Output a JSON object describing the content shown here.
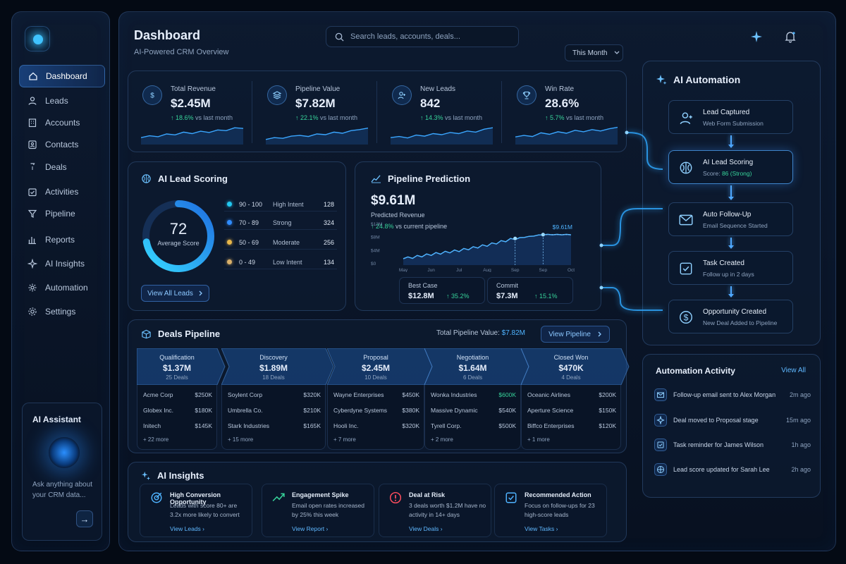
{
  "header": {
    "title": "Dashboard",
    "subtitle": "AI-Powered CRM Overview",
    "search_placeholder": "Search leads, accounts, deals...",
    "period": "This Month"
  },
  "sidebar": {
    "items": [
      {
        "label": "Dashboard",
        "icon": "home-icon",
        "active": true
      },
      {
        "label": "Leads",
        "icon": "user-icon"
      },
      {
        "label": "Accounts",
        "icon": "building-icon"
      },
      {
        "label": "Contacts",
        "icon": "contact-card-icon"
      },
      {
        "label": "Deals",
        "icon": "dollar-bag-icon"
      },
      {
        "label": "Activities",
        "icon": "calendar-check-icon"
      },
      {
        "label": "Pipeline",
        "icon": "funnel-icon"
      },
      {
        "label": "Reports",
        "icon": "bar-chart-icon"
      },
      {
        "label": "AI Insights",
        "icon": "sparkle-icon"
      },
      {
        "label": "Automation",
        "icon": "gear-flow-icon"
      },
      {
        "label": "Settings",
        "icon": "gear-icon"
      }
    ],
    "assistant": {
      "title": "AI Assistant",
      "desc": "Ask anything about your CRM data...",
      "action": "→"
    }
  },
  "kpis": [
    {
      "label": "Total Revenue",
      "value": "$2.45M",
      "change": "↑ 18.6%",
      "suffix": "vs last month",
      "icon": "dollar-icon"
    },
    {
      "label": "Pipeline Value",
      "value": "$7.82M",
      "change": "↑ 22.1%",
      "suffix": "vs last month",
      "icon": "layers-icon"
    },
    {
      "label": "New Leads",
      "value": "842",
      "change": "↑ 14.3%",
      "suffix": "vs last month",
      "icon": "add-user-icon"
    },
    {
      "label": "Win Rate",
      "value": "28.6%",
      "change": "↑ 5.7%",
      "suffix": "vs last month",
      "icon": "trophy-icon"
    }
  ],
  "lead_scoring": {
    "title": "AI Lead Scoring",
    "score": "72",
    "score_label": "Average Score",
    "score_value": 72,
    "button": "View All Leads",
    "rows": [
      {
        "range": "90 - 100",
        "name": "High Intent",
        "count": "128",
        "color": "#22c8f0"
      },
      {
        "range": "70 - 89",
        "name": "Strong",
        "count": "324",
        "color": "#2f8cff"
      },
      {
        "range": "50 - 69",
        "name": "Moderate",
        "count": "256",
        "color": "#e7b64a"
      },
      {
        "range": "0 - 49",
        "name": "Low Intent",
        "count": "134",
        "color": "#d9b06a"
      }
    ]
  },
  "prediction": {
    "title": "Pipeline Prediction",
    "value": "$9.61M",
    "label": "Predicted Revenue",
    "change": "↑ 24.8%",
    "change_suffix": "vs current pipeline",
    "end_label": "$9.61M",
    "best_label": "Best Case",
    "best_value": "$12.8M",
    "best_change": "↑ 35.2%",
    "commit_label": "Commit",
    "commit_value": "$7.3M",
    "commit_change": "↑ 15.1%"
  },
  "chart_data": {
    "type": "line",
    "x": [
      "May",
      "Jun",
      "Jul",
      "Aug",
      "Sep",
      "Sep",
      "Oct"
    ],
    "y_ticks": [
      "$12M",
      "$8M",
      "$4M",
      "$0"
    ],
    "ylim": [
      0,
      12
    ],
    "series": [
      {
        "values": [
          2.0,
          3.4,
          4.6,
          6.3,
          8.4,
          9.61,
          9.61
        ]
      }
    ]
  },
  "deals": {
    "title": "Deals Pipeline",
    "total_label": "Total Pipeline Value:",
    "total_value": "$7.82M",
    "button": "View Pipeline",
    "stages": [
      {
        "name": "Qualification",
        "amount": "$1.37M",
        "count": "25 Deals",
        "more": "+ 22 more",
        "rows": [
          [
            "Acme Corp",
            "$250K"
          ],
          [
            "Globex Inc.",
            "$180K"
          ],
          [
            "Initech",
            "$145K"
          ]
        ]
      },
      {
        "name": "Discovery",
        "amount": "$1.89M",
        "count": "18 Deals",
        "more": "+ 15 more",
        "rows": [
          [
            "Soylent Corp",
            "$320K"
          ],
          [
            "Umbrella Co.",
            "$210K"
          ],
          [
            "Stark Industries",
            "$165K"
          ]
        ]
      },
      {
        "name": "Proposal",
        "amount": "$2.45M",
        "count": "10 Deals",
        "more": "+ 7 more",
        "rows": [
          [
            "Wayne Enterprises",
            "$450K"
          ],
          [
            "Cyberdyne Systems",
            "$380K"
          ],
          [
            "Hooli Inc.",
            "$320K"
          ]
        ]
      },
      {
        "name": "Negotiation",
        "amount": "$1.64M",
        "count": "6 Deals",
        "more": "+ 2 more",
        "rows": [
          [
            "Wonka Industries",
            "$600K"
          ],
          [
            "Massive Dynamic",
            "$540K"
          ],
          [
            "Tyrell Corp.",
            "$500K"
          ]
        ]
      },
      {
        "name": "Closed Won",
        "amount": "$470K",
        "count": "4 Deals",
        "more": "+ 1 more",
        "rows": [
          [
            "Oceanic Airlines",
            "$200K"
          ],
          [
            "Aperture Science",
            "$150K"
          ],
          [
            "Biffco Enterprises",
            "$120K"
          ]
        ]
      }
    ]
  },
  "insights": {
    "title": "AI Insights",
    "items": [
      {
        "title": "High Conversion Opportunity",
        "text": "Leads with score 80+ are 3.2x more likely to convert",
        "link": "View Leads ›",
        "icon": "target-icon"
      },
      {
        "title": "Engagement Spike",
        "text": "Email open rates increased by 25% this week",
        "link": "View Report ›",
        "icon": "trend-up-icon"
      },
      {
        "title": "Deal at Risk",
        "text": "3 deals worth $1.2M have no activity in 14+ days",
        "link": "View Deals ›",
        "icon": "alert-icon"
      },
      {
        "title": "Recommended Action",
        "text": "Focus on follow-ups for 23 high-score leads",
        "link": "View Tasks ›",
        "icon": "checklist-icon"
      }
    ]
  },
  "automation": {
    "title": "AI Automation",
    "steps": [
      {
        "title": "Lead Captured",
        "sub": "Web Form Submission",
        "icon": "add-user-icon"
      },
      {
        "title": "AI Lead Scoring",
        "sub": "Score: ",
        "score": "86 (Strong)",
        "icon": "brain-icon"
      },
      {
        "title": "Auto Follow-Up",
        "sub": "Email Sequence Started",
        "icon": "mail-icon"
      },
      {
        "title": "Task Created",
        "sub": "Follow up in 2 days",
        "icon": "task-icon"
      },
      {
        "title": "Opportunity Created",
        "sub": "New Deal Added to Pipeline",
        "icon": "dollar-icon"
      }
    ]
  },
  "activity": {
    "title": "Automation Activity",
    "link": "View All",
    "items": [
      {
        "text": "Follow-up email sent to Alex Morgan",
        "time": "2m ago",
        "icon": "mail-icon"
      },
      {
        "text": "Deal moved to Proposal stage",
        "time": "15m ago",
        "icon": "move-icon"
      },
      {
        "text": "Task reminder for James Wilson",
        "time": "1h ago",
        "icon": "task-icon"
      },
      {
        "text": "Lead score updated for Sarah Lee",
        "time": "2h ago",
        "icon": "target-icon"
      }
    ]
  },
  "colors": {
    "accent": "#4fb3ff",
    "positive": "#37d39a",
    "bg": "#040a14"
  }
}
